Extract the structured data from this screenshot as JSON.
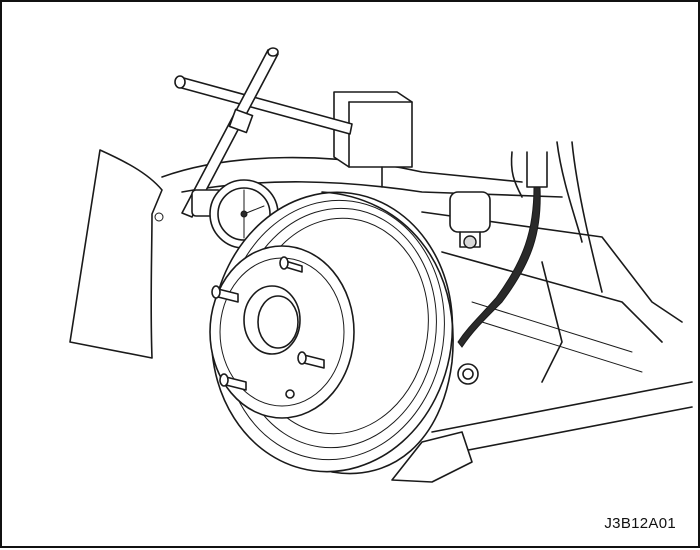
{
  "figure": {
    "caption": "J3B12A01"
  }
}
